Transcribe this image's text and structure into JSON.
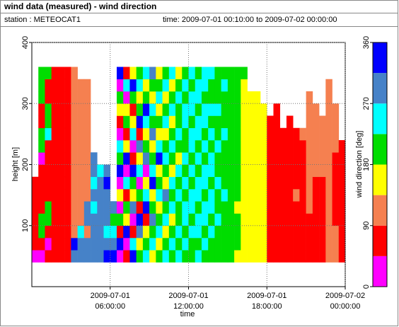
{
  "chart_data": {
    "type": "heatmap",
    "title": "wind data (measured) - wind direction",
    "station": "station : METEOCAT1",
    "time_range": "time: 2009-07-01 00:10:00 to 2009-07-02 00:00:00",
    "x_label": "time",
    "y_label": "height [m]",
    "xlim": [
      0,
      24
    ],
    "xticks": [
      {
        "value": 6,
        "label": "2009-07-01 06:00:00"
      },
      {
        "value": 12,
        "label": "2009-07-01 12:00:00"
      },
      {
        "value": 18,
        "label": "2009-07-01 18:00:00"
      },
      {
        "value": 24,
        "label": "2009-07-02 00:00:00"
      }
    ],
    "ylim": [
      0,
      400
    ],
    "yticks": [
      100,
      200,
      300,
      400
    ],
    "grid": true,
    "x": [
      0,
      0.5,
      1,
      1.5,
      2,
      2.5,
      3,
      3.5,
      4,
      4.5,
      5,
      5.5,
      6,
      6.5,
      7,
      7.5,
      8,
      8.5,
      9,
      9.5,
      10,
      10.5,
      11,
      11.5,
      12,
      12.5,
      13,
      13.5,
      14,
      14.5,
      15,
      15.5,
      16,
      16.5,
      17,
      17.5,
      18,
      18.5,
      19,
      19.5,
      20,
      20.5,
      21,
      21.5,
      22,
      22.5,
      23,
      23.5
    ],
    "heights": [
      40,
      60,
      80,
      100,
      120,
      140,
      160,
      180,
      200,
      220,
      240,
      260,
      280,
      300,
      320,
      340
    ],
    "values": [
      [
        20,
        70,
        70,
        70,
        70,
        70,
        70,
        null,
        null,
        null,
        null,
        null,
        null,
        null,
        null,
        null
      ],
      [
        20,
        70,
        200,
        200,
        70,
        70,
        70,
        70,
        20,
        200,
        200,
        70,
        70,
        200,
        200,
        200
      ],
      [
        70,
        20,
        70,
        200,
        200,
        70,
        70,
        70,
        70,
        70,
        250,
        200,
        200,
        70,
        70,
        200
      ],
      [
        70,
        70,
        70,
        70,
        70,
        70,
        70,
        70,
        70,
        70,
        70,
        70,
        70,
        70,
        70,
        70
      ],
      [
        70,
        70,
        70,
        70,
        70,
        70,
        70,
        70,
        70,
        70,
        70,
        70,
        70,
        70,
        70,
        70
      ],
      [
        70,
        70,
        70,
        70,
        70,
        70,
        70,
        70,
        70,
        70,
        70,
        70,
        70,
        70,
        70,
        70
      ],
      [
        290,
        340,
        110,
        110,
        110,
        110,
        110,
        110,
        110,
        110,
        110,
        110,
        110,
        110,
        110,
        110
      ],
      [
        290,
        290,
        250,
        110,
        110,
        110,
        110,
        110,
        110,
        110,
        110,
        110,
        110,
        110,
        110,
        null
      ],
      [
        290,
        290,
        110,
        290,
        290,
        110,
        110,
        110,
        110,
        110,
        110,
        110,
        110,
        110,
        110,
        null
      ],
      [
        290,
        290,
        290,
        290,
        250,
        290,
        250,
        290,
        290,
        null,
        null,
        null,
        null,
        null,
        null,
        null
      ],
      [
        290,
        290,
        290,
        290,
        290,
        290,
        290,
        250,
        null,
        null,
        null,
        null,
        null,
        null,
        null,
        null
      ],
      [
        340,
        290,
        250,
        290,
        290,
        290,
        340,
        290,
        null,
        null,
        null,
        null,
        null,
        null,
        null,
        null
      ],
      [
        340,
        290,
        250,
        200,
        290,
        null,
        null,
        null,
        null,
        null,
        null,
        null,
        null,
        null,
        null,
        null
      ],
      [
        20,
        340,
        70,
        200,
        20,
        160,
        20,
        340,
        200,
        250,
        20,
        70,
        160,
        200,
        20,
        340
      ],
      [
        70,
        20,
        340,
        160,
        200,
        70,
        250,
        20,
        340,
        160,
        70,
        200,
        160,
        20,
        250,
        70
      ],
      [
        340,
        250,
        70,
        20,
        290,
        160,
        200,
        340,
        70,
        20,
        250,
        160,
        70,
        200,
        340,
        160
      ],
      [
        200,
        160,
        290,
        340,
        70,
        200,
        20,
        250,
        160,
        290,
        70,
        340,
        200,
        160,
        250,
        200
      ],
      [
        250,
        200,
        160,
        70,
        340,
        250,
        160,
        20,
        290,
        200,
        160,
        250,
        340,
        200,
        160,
        250
      ],
      [
        160,
        250,
        200,
        290,
        200,
        160,
        340,
        250,
        200,
        160,
        290,
        200,
        250,
        160,
        200,
        290
      ],
      [
        200,
        160,
        250,
        200,
        160,
        250,
        200,
        160,
        340,
        250,
        160,
        200,
        160,
        250,
        200,
        160
      ],
      [
        250,
        200,
        160,
        250,
        200,
        290,
        160,
        200,
        250,
        200,
        160,
        250,
        200,
        160,
        250,
        200
      ],
      [
        200,
        250,
        200,
        160,
        250,
        200,
        250,
        160,
        200,
        250,
        200,
        160,
        250,
        200,
        160,
        250
      ],
      [
        250,
        200,
        250,
        200,
        200,
        250,
        200,
        250,
        160,
        200,
        250,
        200,
        200,
        250,
        200,
        160
      ],
      [
        200,
        250,
        200,
        250,
        250,
        200,
        250,
        200,
        250,
        200,
        200,
        250,
        250,
        200,
        250,
        200
      ],
      [
        200,
        200,
        250,
        200,
        250,
        250,
        200,
        250,
        200,
        250,
        250,
        200,
        250,
        250,
        200,
        250
      ],
      [
        250,
        200,
        250,
        250,
        200,
        250,
        250,
        200,
        250,
        200,
        250,
        250,
        200,
        250,
        250,
        200
      ],
      [
        200,
        250,
        200,
        250,
        250,
        200,
        250,
        250,
        200,
        250,
        200,
        250,
        250,
        200,
        250,
        250
      ],
      [
        200,
        200,
        250,
        200,
        250,
        250,
        200,
        250,
        250,
        200,
        250,
        200,
        250,
        200,
        200,
        250
      ],
      [
        200,
        200,
        200,
        250,
        200,
        200,
        250,
        200,
        200,
        250,
        200,
        200,
        250,
        200,
        200,
        200
      ],
      [
        200,
        200,
        200,
        200,
        200,
        250,
        200,
        200,
        200,
        200,
        250,
        200,
        200,
        200,
        250,
        200
      ],
      [
        200,
        200,
        200,
        200,
        200,
        200,
        200,
        200,
        200,
        200,
        200,
        200,
        200,
        200,
        200,
        200
      ],
      [
        160,
        200,
        200,
        200,
        160,
        200,
        200,
        200,
        200,
        200,
        200,
        200,
        200,
        200,
        200,
        200
      ],
      [
        160,
        160,
        160,
        160,
        160,
        160,
        160,
        160,
        160,
        160,
        160,
        160,
        160,
        160,
        160,
        200
      ],
      [
        160,
        160,
        160,
        160,
        160,
        160,
        160,
        160,
        160,
        160,
        160,
        160,
        160,
        160,
        null,
        null
      ],
      [
        160,
        160,
        160,
        160,
        160,
        160,
        160,
        160,
        160,
        160,
        160,
        160,
        160,
        160,
        null,
        null
      ],
      [
        160,
        160,
        160,
        160,
        160,
        160,
        160,
        160,
        160,
        160,
        160,
        160,
        160,
        null,
        null,
        null
      ],
      [
        70,
        70,
        70,
        70,
        70,
        70,
        70,
        70,
        70,
        70,
        70,
        70,
        null,
        null,
        null,
        null
      ],
      [
        70,
        70,
        70,
        70,
        70,
        70,
        70,
        70,
        70,
        70,
        70,
        70,
        70,
        null,
        null,
        null
      ],
      [
        70,
        70,
        70,
        70,
        70,
        70,
        70,
        70,
        70,
        70,
        70,
        null,
        null,
        null,
        null,
        null
      ],
      [
        70,
        70,
        70,
        70,
        70,
        70,
        70,
        70,
        70,
        70,
        70,
        70,
        null,
        null,
        null,
        null
      ],
      [
        70,
        70,
        70,
        70,
        70,
        110,
        70,
        70,
        70,
        70,
        70,
        null,
        null,
        null,
        null,
        null
      ],
      [
        70,
        70,
        70,
        70,
        70,
        70,
        70,
        70,
        70,
        70,
        110,
        null,
        null,
        null,
        null,
        null
      ],
      [
        70,
        70,
        70,
        70,
        110,
        110,
        110,
        110,
        110,
        110,
        110,
        110,
        110,
        110,
        null,
        null
      ],
      [
        70,
        70,
        70,
        70,
        70,
        70,
        70,
        110,
        110,
        110,
        110,
        110,
        110,
        null,
        null,
        null
      ],
      [
        70,
        70,
        70,
        70,
        70,
        70,
        70,
        110,
        110,
        110,
        110,
        110,
        null,
        null,
        null,
        null
      ],
      [
        110,
        110,
        110,
        110,
        110,
        110,
        110,
        110,
        110,
        110,
        110,
        110,
        110,
        110,
        110,
        null
      ],
      [
        110,
        110,
        110,
        70,
        70,
        70,
        70,
        70,
        70,
        110,
        110,
        110,
        110,
        null,
        null,
        null
      ],
      [
        70,
        70,
        70,
        70,
        70,
        70,
        70,
        70,
        70,
        70,
        null,
        null,
        null,
        null,
        null,
        null
      ]
    ],
    "colorbar": {
      "label": "wind direction [deg]",
      "lim": [
        0,
        360
      ],
      "ticks": [
        0,
        90,
        180,
        270,
        360
      ],
      "bounds": [
        0,
        45,
        90,
        135,
        180,
        225,
        270,
        315,
        360
      ],
      "colors": [
        "#ff00ff",
        "#ff0000",
        "#f58050",
        "#ffff00",
        "#00dd00",
        "#00ffff",
        "#4682c8",
        "#0000ff"
      ]
    }
  }
}
